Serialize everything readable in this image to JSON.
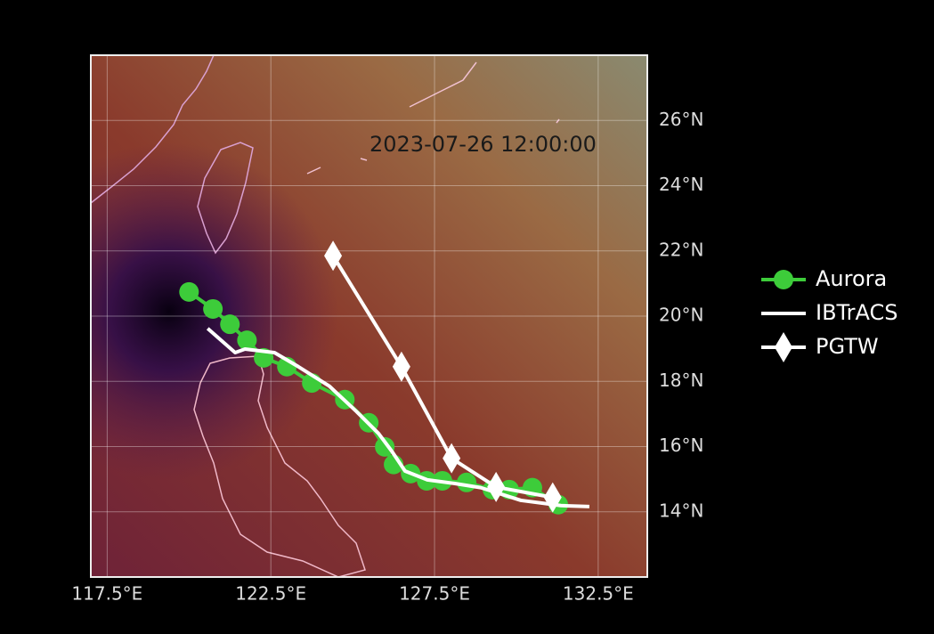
{
  "chart_data": {
    "type": "line",
    "annotation": "2023-07-26 12:00:00",
    "xlim": [
      117,
      134
    ],
    "ylim": [
      12,
      28
    ],
    "xticks": [
      {
        "value": 117.5,
        "label": "117.5°E"
      },
      {
        "value": 122.5,
        "label": "122.5°E"
      },
      {
        "value": 127.5,
        "label": "127.5°E"
      },
      {
        "value": 132.5,
        "label": "132.5°E"
      }
    ],
    "yticks": [
      {
        "value": 14,
        "label": "14°N"
      },
      {
        "value": 16,
        "label": "16°N"
      },
      {
        "value": 18,
        "label": "18°N"
      },
      {
        "value": 20,
        "label": "20°N"
      },
      {
        "value": 22,
        "label": "22°N"
      },
      {
        "value": 24,
        "label": "24°N"
      },
      {
        "value": 26,
        "label": "26°N"
      }
    ],
    "grid": true,
    "legend": "outside right",
    "series": [
      {
        "name": "Aurora",
        "color": "#3dcc3a",
        "marker": "circle",
        "x": [
          120.0,
          120.73,
          121.25,
          121.77,
          122.28,
          122.99,
          123.75,
          124.76,
          125.49,
          125.98,
          126.25,
          126.77,
          127.26,
          127.74,
          128.48,
          129.27,
          129.78,
          130.49,
          131.28
        ],
        "values": [
          20.74,
          20.22,
          19.75,
          19.26,
          18.72,
          18.45,
          17.95,
          17.44,
          16.73,
          15.99,
          15.45,
          15.17,
          14.95,
          14.95,
          14.9,
          14.68,
          14.68,
          14.74,
          14.22
        ]
      },
      {
        "name": "IBTrACS",
        "color": "#ffffff",
        "marker": "none",
        "x": [
          120.57,
          121.41,
          121.71,
          122.61,
          123.34,
          124.29,
          125.11,
          125.79,
          126.2,
          126.6,
          127.28,
          128.1,
          128.91,
          130.14,
          131.36,
          132.23
        ],
        "values": [
          19.62,
          18.88,
          18.99,
          18.88,
          18.45,
          17.85,
          17.08,
          16.4,
          15.85,
          15.25,
          14.98,
          14.87,
          14.74,
          14.35,
          14.19,
          14.16
        ]
      },
      {
        "name": "PGTW",
        "color": "#ffffff",
        "marker": "diamond",
        "x": [
          124.4,
          126.49,
          128.02,
          129.38,
          131.11
        ],
        "values": [
          21.85,
          18.45,
          15.64,
          14.76,
          14.44
        ]
      }
    ]
  }
}
